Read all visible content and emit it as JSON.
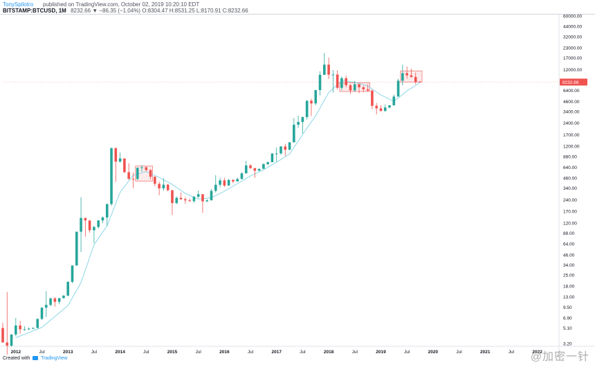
{
  "header": {
    "author": "TonySpilotro",
    "published": "published on TradingView.com, October 02, 2019 10:20:10 EDT",
    "symbol": "BITSTAMP:BTCUSD, 1M",
    "ohlc": "8232.66 ▼ −86.35 (−1.04%) O:8304.47 H:8531.25 L:8170.91 C:8232.66"
  },
  "footer": {
    "created_with": "Created with",
    "brand": "TradingView"
  },
  "watermark": "@加密一针",
  "last_price_label": "8232.66",
  "colors": {
    "up": "#26a69a",
    "down": "#ef5350",
    "ma_line": "#7fd3e6",
    "box_fill": "#fbdada",
    "box_stroke": "#ef5350",
    "axis_text": "#131722"
  },
  "chart_data": {
    "type": "candlestick",
    "y_scale": "log",
    "ylim": [
      3.2,
      60000
    ],
    "xlim": [
      "2011-10",
      "2022-06"
    ],
    "y_ticks": [
      "3.20",
      "5.10",
      "6.90",
      "9.50",
      "13.00",
      "18.00",
      "25.00",
      "34.00",
      "46.00",
      "64.00",
      "88.00",
      "120.00",
      "170.00",
      "240.00",
      "340.00",
      "460.00",
      "640.00",
      "880.00",
      "1200.00",
      "1700.00",
      "2400.00",
      "3400.00",
      "4600.00",
      "6400.00",
      "8232.66",
      "12000.00",
      "17000.00",
      "23000.00",
      "32000.00",
      "44000.00",
      "60000.00"
    ],
    "x_ticks": [
      {
        "label": "2012",
        "date": "2012-01"
      },
      {
        "label": "Jul",
        "date": "2012-07"
      },
      {
        "label": "2013",
        "date": "2013-01"
      },
      {
        "label": "Jul",
        "date": "2013-07"
      },
      {
        "label": "2014",
        "date": "2014-01"
      },
      {
        "label": "Jul",
        "date": "2014-07"
      },
      {
        "label": "2015",
        "date": "2015-01"
      },
      {
        "label": "Jul",
        "date": "2015-07"
      },
      {
        "label": "2016",
        "date": "2016-01"
      },
      {
        "label": "Jul",
        "date": "2016-07"
      },
      {
        "label": "2017",
        "date": "2017-01"
      },
      {
        "label": "Jul",
        "date": "2017-07"
      },
      {
        "label": "2018",
        "date": "2018-01"
      },
      {
        "label": "Jul",
        "date": "2018-07"
      },
      {
        "label": "2019",
        "date": "2019-01"
      },
      {
        "label": "Jul",
        "date": "2019-07"
      },
      {
        "label": "2020",
        "date": "2020-01"
      },
      {
        "label": "Jul",
        "date": "2020-07"
      },
      {
        "label": "2021",
        "date": "2021-01"
      },
      {
        "label": "Jul",
        "date": "2021-07"
      },
      {
        "label": "2022",
        "date": "2022-01"
      }
    ],
    "candles": [
      {
        "d": "2011-10",
        "o": 5.1,
        "h": 6.0,
        "l": 3.3,
        "c": 3.3
      },
      {
        "d": "2011-11",
        "o": 3.3,
        "h": 15.0,
        "l": 2.3,
        "c": 3.0
      },
      {
        "d": "2011-12",
        "o": 3.0,
        "h": 4.2,
        "l": 2.9,
        "c": 4.2
      },
      {
        "d": "2012-01",
        "o": 4.2,
        "h": 6.9,
        "l": 4.0,
        "c": 5.5
      },
      {
        "d": "2012-02",
        "o": 5.5,
        "h": 6.3,
        "l": 4.3,
        "c": 4.9
      },
      {
        "d": "2012-03",
        "o": 4.9,
        "h": 5.4,
        "l": 4.7,
        "c": 4.9
      },
      {
        "d": "2012-04",
        "o": 4.9,
        "h": 5.2,
        "l": 4.8,
        "c": 5.0
      },
      {
        "d": "2012-05",
        "o": 5.0,
        "h": 5.2,
        "l": 4.9,
        "c": 5.1
      },
      {
        "d": "2012-06",
        "o": 5.1,
        "h": 6.8,
        "l": 5.1,
        "c": 6.7
      },
      {
        "d": "2012-07",
        "o": 6.7,
        "h": 9.5,
        "l": 6.5,
        "c": 9.4
      },
      {
        "d": "2012-08",
        "o": 9.4,
        "h": 15.4,
        "l": 7.1,
        "c": 10.2
      },
      {
        "d": "2012-09",
        "o": 10.2,
        "h": 12.7,
        "l": 9.8,
        "c": 12.4
      },
      {
        "d": "2012-10",
        "o": 12.4,
        "h": 12.9,
        "l": 9.7,
        "c": 11.2
      },
      {
        "d": "2012-11",
        "o": 11.2,
        "h": 12.6,
        "l": 10.4,
        "c": 12.5
      },
      {
        "d": "2012-12",
        "o": 12.5,
        "h": 13.7,
        "l": 12.4,
        "c": 13.5
      },
      {
        "d": "2013-01",
        "o": 13.5,
        "h": 20.8,
        "l": 13.2,
        "c": 20.4
      },
      {
        "d": "2013-02",
        "o": 20.4,
        "h": 33.0,
        "l": 19.6,
        "c": 33.4
      },
      {
        "d": "2013-03",
        "o": 33.4,
        "h": 92.0,
        "l": 33.0,
        "c": 92.0
      },
      {
        "d": "2013-04",
        "o": 92.0,
        "h": 259.0,
        "l": 50.0,
        "c": 139.0
      },
      {
        "d": "2013-05",
        "o": 139.0,
        "h": 139.0,
        "l": 79.0,
        "c": 129.0
      },
      {
        "d": "2013-06",
        "o": 129.0,
        "h": 129.0,
        "l": 89.0,
        "c": 96.0
      },
      {
        "d": "2013-07",
        "o": 96.0,
        "h": 110.0,
        "l": 65.0,
        "c": 106.0
      },
      {
        "d": "2013-08",
        "o": 106.0,
        "h": 130.0,
        "l": 101.0,
        "c": 129.0
      },
      {
        "d": "2013-09",
        "o": 129.0,
        "h": 146.0,
        "l": 119.0,
        "c": 141.0
      },
      {
        "d": "2013-10",
        "o": 141.0,
        "h": 214.0,
        "l": 110.0,
        "c": 211.0
      },
      {
        "d": "2013-11",
        "o": 211.0,
        "h": 1163.0,
        "l": 200.0,
        "c": 1128.0
      },
      {
        "d": "2013-12",
        "o": 1128.0,
        "h": 1165.0,
        "l": 412.0,
        "c": 754.0
      },
      {
        "d": "2014-01",
        "o": 754.0,
        "h": 995.0,
        "l": 738.0,
        "c": 829.0
      },
      {
        "d": "2014-02",
        "o": 829.0,
        "h": 837.0,
        "l": 537.0,
        "c": 549.0
      },
      {
        "d": "2014-03",
        "o": 549.0,
        "h": 719.0,
        "l": 437.0,
        "c": 449.0
      },
      {
        "d": "2014-04",
        "o": 449.0,
        "h": 547.0,
        "l": 340.0,
        "c": 448.0
      },
      {
        "d": "2014-05",
        "o": 448.0,
        "h": 632.0,
        "l": 432.0,
        "c": 629.0
      },
      {
        "d": "2014-06",
        "o": 629.0,
        "h": 678.0,
        "l": 556.0,
        "c": 637.0
      },
      {
        "d": "2014-07",
        "o": 637.0,
        "h": 655.0,
        "l": 562.0,
        "c": 586.0
      },
      {
        "d": "2014-08",
        "o": 586.0,
        "h": 601.0,
        "l": 440.0,
        "c": 479.0
      },
      {
        "d": "2014-09",
        "o": 479.0,
        "h": 487.0,
        "l": 360.0,
        "c": 387.0
      },
      {
        "d": "2014-10",
        "o": 387.0,
        "h": 415.0,
        "l": 275.0,
        "c": 338.0
      },
      {
        "d": "2014-11",
        "o": 338.0,
        "h": 457.0,
        "l": 315.0,
        "c": 378.0
      },
      {
        "d": "2014-12",
        "o": 378.0,
        "h": 386.0,
        "l": 310.0,
        "c": 320.0
      },
      {
        "d": "2015-01",
        "o": 320.0,
        "h": 320.0,
        "l": 152.0,
        "c": 217.0
      },
      {
        "d": "2015-02",
        "o": 217.0,
        "h": 265.0,
        "l": 211.0,
        "c": 254.0
      },
      {
        "d": "2015-03",
        "o": 254.0,
        "h": 299.0,
        "l": 240.0,
        "c": 244.0
      },
      {
        "d": "2015-04",
        "o": 244.0,
        "h": 261.0,
        "l": 213.0,
        "c": 236.0
      },
      {
        "d": "2015-05",
        "o": 236.0,
        "h": 248.0,
        "l": 228.0,
        "c": 230.0
      },
      {
        "d": "2015-06",
        "o": 230.0,
        "h": 268.0,
        "l": 220.0,
        "c": 263.0
      },
      {
        "d": "2015-07",
        "o": 263.0,
        "h": 317.0,
        "l": 253.0,
        "c": 284.0
      },
      {
        "d": "2015-08",
        "o": 284.0,
        "h": 285.0,
        "l": 162.0,
        "c": 229.0
      },
      {
        "d": "2015-09",
        "o": 229.0,
        "h": 244.0,
        "l": 224.0,
        "c": 236.0
      },
      {
        "d": "2015-10",
        "o": 236.0,
        "h": 330.0,
        "l": 236.0,
        "c": 314.0
      },
      {
        "d": "2015-11",
        "o": 314.0,
        "h": 502.0,
        "l": 298.0,
        "c": 377.0
      },
      {
        "d": "2015-12",
        "o": 377.0,
        "h": 465.0,
        "l": 349.0,
        "c": 430.0
      },
      {
        "d": "2016-01",
        "o": 430.0,
        "h": 465.0,
        "l": 352.0,
        "c": 368.0
      },
      {
        "d": "2016-02",
        "o": 368.0,
        "h": 448.0,
        "l": 366.0,
        "c": 436.0
      },
      {
        "d": "2016-03",
        "o": 436.0,
        "h": 439.0,
        "l": 394.0,
        "c": 416.0
      },
      {
        "d": "2016-04",
        "o": 416.0,
        "h": 467.0,
        "l": 414.0,
        "c": 448.0
      },
      {
        "d": "2016-05",
        "o": 448.0,
        "h": 549.0,
        "l": 440.0,
        "c": 531.0
      },
      {
        "d": "2016-06",
        "o": 531.0,
        "h": 775.0,
        "l": 529.0,
        "c": 673.0
      },
      {
        "d": "2016-07",
        "o": 673.0,
        "h": 704.0,
        "l": 600.0,
        "c": 622.0
      },
      {
        "d": "2016-08",
        "o": 622.0,
        "h": 622.0,
        "l": 465.0,
        "c": 574.0
      },
      {
        "d": "2016-09",
        "o": 574.0,
        "h": 612.0,
        "l": 570.0,
        "c": 608.0
      },
      {
        "d": "2016-10",
        "o": 608.0,
        "h": 720.0,
        "l": 606.0,
        "c": 700.0
      },
      {
        "d": "2016-11",
        "o": 700.0,
        "h": 755.0,
        "l": 680.0,
        "c": 742.0
      },
      {
        "d": "2016-12",
        "o": 742.0,
        "h": 974.0,
        "l": 740.0,
        "c": 963.0
      },
      {
        "d": "2017-01",
        "o": 963.0,
        "h": 1153.0,
        "l": 751.0,
        "c": 965.0
      },
      {
        "d": "2017-02",
        "o": 965.0,
        "h": 1202.0,
        "l": 935.0,
        "c": 1190.0
      },
      {
        "d": "2017-03",
        "o": 1190.0,
        "h": 1290.0,
        "l": 890.0,
        "c": 1079.0
      },
      {
        "d": "2017-04",
        "o": 1079.0,
        "h": 1355.0,
        "l": 1061.0,
        "c": 1348.0
      },
      {
        "d": "2017-05",
        "o": 1348.0,
        "h": 2791.0,
        "l": 1348.0,
        "c": 2286.0
      },
      {
        "d": "2017-06",
        "o": 2286.0,
        "h": 3000.0,
        "l": 2076.0,
        "c": 2480.0
      },
      {
        "d": "2017-07",
        "o": 2480.0,
        "h": 2924.0,
        "l": 1758.0,
        "c": 2875.0
      },
      {
        "d": "2017-08",
        "o": 2875.0,
        "h": 4765.0,
        "l": 2672.0,
        "c": 4703.0
      },
      {
        "d": "2017-09",
        "o": 4703.0,
        "h": 4980.0,
        "l": 2980.0,
        "c": 4338.0
      },
      {
        "d": "2017-10",
        "o": 4338.0,
        "h": 6446.0,
        "l": 4110.0,
        "c": 6468.0
      },
      {
        "d": "2017-11",
        "o": 6468.0,
        "h": 11395.0,
        "l": 5519.0,
        "c": 10233.0
      },
      {
        "d": "2017-12",
        "o": 10233.0,
        "h": 19666.0,
        "l": 10233.0,
        "c": 13880.0
      },
      {
        "d": "2018-01",
        "o": 13880.0,
        "h": 17178.0,
        "l": 9035.0,
        "c": 10285.0
      },
      {
        "d": "2018-02",
        "o": 10285.0,
        "h": 11778.0,
        "l": 6000.0,
        "c": 10321.0
      },
      {
        "d": "2018-03",
        "o": 10321.0,
        "h": 11708.0,
        "l": 6585.0,
        "c": 6926.0
      },
      {
        "d": "2018-04",
        "o": 6926.0,
        "h": 9760.0,
        "l": 6430.0,
        "c": 9245.0
      },
      {
        "d": "2018-05",
        "o": 9245.0,
        "h": 9990.0,
        "l": 7034.0,
        "c": 7495.0
      },
      {
        "d": "2018-06",
        "o": 7495.0,
        "h": 7775.0,
        "l": 5755.0,
        "c": 6398.0
      },
      {
        "d": "2018-07",
        "o": 6398.0,
        "h": 8507.0,
        "l": 6100.0,
        "c": 7730.0
      },
      {
        "d": "2018-08",
        "o": 7730.0,
        "h": 7760.0,
        "l": 5880.0,
        "c": 7035.0
      },
      {
        "d": "2018-09",
        "o": 7035.0,
        "h": 7410.0,
        "l": 6100.0,
        "c": 6625.0
      },
      {
        "d": "2018-10",
        "o": 6625.0,
        "h": 7680.0,
        "l": 6200.0,
        "c": 6370.0
      },
      {
        "d": "2018-11",
        "o": 6370.0,
        "h": 6580.0,
        "l": 3652.0,
        "c": 4038.0
      },
      {
        "d": "2018-12",
        "o": 4038.0,
        "h": 4390.0,
        "l": 3122.0,
        "c": 3742.0
      },
      {
        "d": "2019-01",
        "o": 3742.0,
        "h": 4110.0,
        "l": 3401.0,
        "c": 3458.0
      },
      {
        "d": "2019-02",
        "o": 3458.0,
        "h": 4209.0,
        "l": 3370.0,
        "c": 3834.0
      },
      {
        "d": "2019-03",
        "o": 3834.0,
        "h": 4134.0,
        "l": 3730.0,
        "c": 4093.0
      },
      {
        "d": "2019-04",
        "o": 4093.0,
        "h": 5638.0,
        "l": 4063.0,
        "c": 5324.0
      },
      {
        "d": "2019-05",
        "o": 5324.0,
        "h": 9074.0,
        "l": 5323.0,
        "c": 8575.0
      },
      {
        "d": "2019-06",
        "o": 8575.0,
        "h": 13880.0,
        "l": 7442.0,
        "c": 10760.0
      },
      {
        "d": "2019-07",
        "o": 10760.0,
        "h": 13147.0,
        "l": 9080.0,
        "c": 10080.0
      },
      {
        "d": "2019-08",
        "o": 10080.0,
        "h": 12327.0,
        "l": 9388.0,
        "c": 9591.0
      },
      {
        "d": "2019-09",
        "o": 9591.0,
        "h": 10946.0,
        "l": 7710.0,
        "c": 8304.0
      },
      {
        "d": "2019-10",
        "o": 8304.47,
        "h": 8531.25,
        "l": 8170.91,
        "c": 8232.66
      }
    ],
    "ma_line": [
      {
        "d": "2012-01",
        "v": 3.8
      },
      {
        "d": "2012-07",
        "v": 5.2
      },
      {
        "d": "2013-01",
        "v": 10.0
      },
      {
        "d": "2013-04",
        "v": 20.0
      },
      {
        "d": "2013-07",
        "v": 62.0
      },
      {
        "d": "2013-10",
        "v": 110.0
      },
      {
        "d": "2014-01",
        "v": 300.0
      },
      {
        "d": "2014-04",
        "v": 500.0
      },
      {
        "d": "2014-07",
        "v": 560.0
      },
      {
        "d": "2014-10",
        "v": 470.0
      },
      {
        "d": "2015-01",
        "v": 380.0
      },
      {
        "d": "2015-04",
        "v": 290.0
      },
      {
        "d": "2015-07",
        "v": 245.0
      },
      {
        "d": "2015-10",
        "v": 255.0
      },
      {
        "d": "2016-01",
        "v": 310.0
      },
      {
        "d": "2016-04",
        "v": 390.0
      },
      {
        "d": "2016-07",
        "v": 490.0
      },
      {
        "d": "2016-10",
        "v": 590.0
      },
      {
        "d": "2017-01",
        "v": 740.0
      },
      {
        "d": "2017-04",
        "v": 950.0
      },
      {
        "d": "2017-07",
        "v": 1700.0
      },
      {
        "d": "2017-10",
        "v": 3000.0
      },
      {
        "d": "2018-01",
        "v": 6000.0
      },
      {
        "d": "2018-04",
        "v": 8600.0
      },
      {
        "d": "2018-07",
        "v": 8200.0
      },
      {
        "d": "2018-10",
        "v": 7300.0
      },
      {
        "d": "2019-01",
        "v": 5600.0
      },
      {
        "d": "2019-04",
        "v": 4600.0
      },
      {
        "d": "2019-07",
        "v": 6300.0
      },
      {
        "d": "2019-10",
        "v": 8100.0
      }
    ],
    "boxes": [
      {
        "from": "2014-05",
        "to": "2014-08",
        "low": 420.0,
        "high": 660.0
      },
      {
        "from": "2018-04",
        "to": "2018-10",
        "low": 6200.0,
        "high": 8100.0
      },
      {
        "from": "2019-06",
        "to": "2019-10",
        "low": 8232.66,
        "high": 11500.0
      }
    ],
    "current_price": 8232.66
  }
}
